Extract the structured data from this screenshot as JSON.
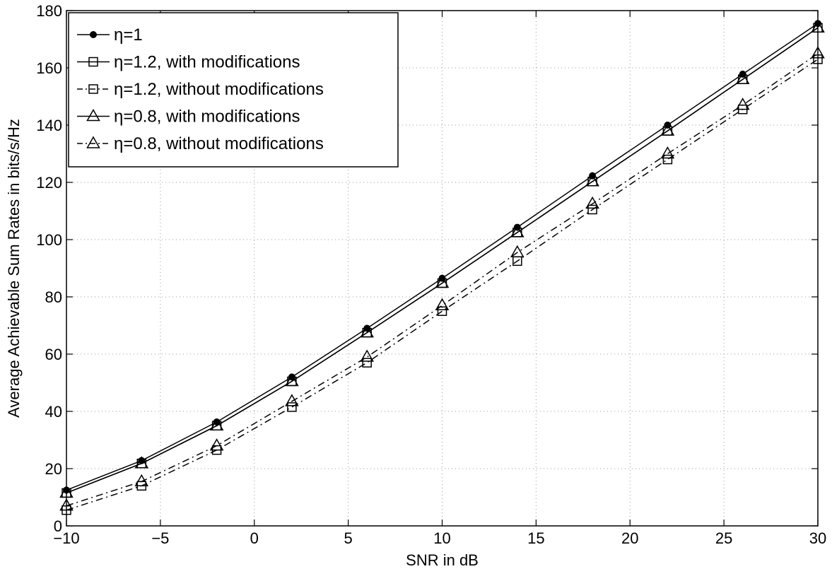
{
  "chart_data": {
    "type": "line",
    "title": "",
    "xlabel": "SNR in dB",
    "ylabel": "Average Achievable Sum Rates in bits/s/Hz",
    "xlim": [
      -10,
      30
    ],
    "ylim": [
      0,
      180
    ],
    "xticks": [
      -10,
      -5,
      0,
      5,
      10,
      15,
      20,
      25,
      30
    ],
    "xtick_labels": [
      "−10",
      "−5",
      "0",
      "5",
      "10",
      "15",
      "20",
      "25",
      "30"
    ],
    "yticks": [
      0,
      20,
      40,
      60,
      80,
      100,
      120,
      140,
      160,
      180
    ],
    "ytick_labels": [
      "0",
      "20",
      "40",
      "60",
      "80",
      "100",
      "120",
      "140",
      "160",
      "180"
    ],
    "grid": true,
    "legend_position": "top-left",
    "x": [
      -10,
      -6,
      -2,
      2,
      6,
      10,
      14,
      18,
      22,
      26,
      30
    ],
    "series": [
      {
        "name": "η=1",
        "marker": "dot",
        "line_style": "solid",
        "values": [
          12.5,
          22.8,
          36.3,
          52.0,
          69.0,
          86.5,
          104.3,
          122.3,
          140.0,
          157.8,
          175.5
        ]
      },
      {
        "name": "η=1.2, with modifications",
        "marker": "square",
        "line_style": "solid",
        "values": [
          11.5,
          21.8,
          35.0,
          50.5,
          67.5,
          84.8,
          102.5,
          120.3,
          138.0,
          156.0,
          174.0
        ]
      },
      {
        "name": "η=1.2, without modifications",
        "marker": "square",
        "line_style": "dashdot",
        "values": [
          5.5,
          14.0,
          26.5,
          41.5,
          57.0,
          75.0,
          92.5,
          110.5,
          128.0,
          145.5,
          163.0
        ]
      },
      {
        "name": "η=0.8, with modifications",
        "marker": "triangle",
        "line_style": "solid",
        "values": [
          11.5,
          21.8,
          35.0,
          50.5,
          67.5,
          84.8,
          102.5,
          120.3,
          138.0,
          156.0,
          174.0
        ]
      },
      {
        "name": "η=0.8, without modifications",
        "marker": "triangle",
        "line_style": "dashdot",
        "values": [
          7.0,
          15.5,
          28.0,
          43.5,
          59.0,
          77.0,
          95.5,
          112.5,
          130.0,
          147.0,
          165.0
        ]
      }
    ]
  }
}
